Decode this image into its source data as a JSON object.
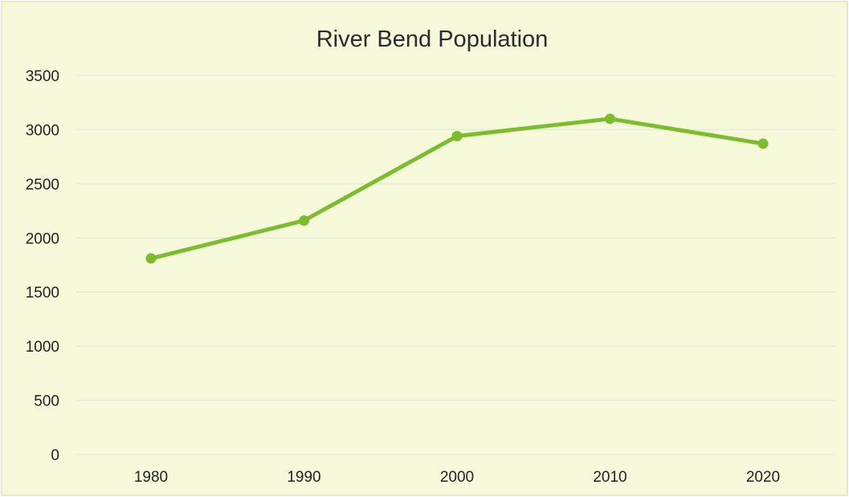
{
  "chart_data": {
    "type": "line",
    "title": "River Bend Population",
    "xlabel": "",
    "ylabel": "",
    "categories": [
      "1980",
      "1990",
      "2000",
      "2010",
      "2020"
    ],
    "series": [
      {
        "values": [
          1810,
          2160,
          2940,
          3100,
          2870
        ]
      }
    ],
    "ylim": [
      0,
      3500
    ],
    "yticks": [
      0,
      500,
      1000,
      1500,
      2000,
      2500,
      3000,
      3500
    ],
    "grid": true,
    "legend": "none"
  },
  "colors": {
    "background": "#f6fadb",
    "frame": "#e3e8cf",
    "gridline": "#e6ebd3",
    "line": "#7cbd2e"
  }
}
